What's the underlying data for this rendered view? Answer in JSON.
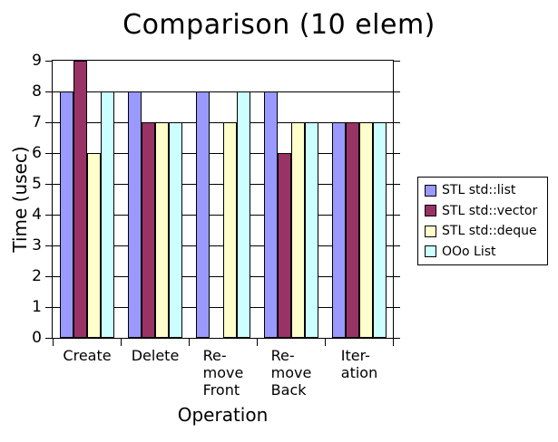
{
  "chart_data": {
    "type": "bar",
    "title": "Comparison (10 elem)",
    "xlabel": "Operation",
    "ylabel": "Time (usec)",
    "ylim": [
      0,
      9
    ],
    "y_tick_step": 1,
    "grid": true,
    "legend_position": "right",
    "categories": [
      "Create",
      "Delete",
      "Remove Front",
      "Remove Back",
      "Iteration"
    ],
    "category_label_lines": [
      [
        "Create"
      ],
      [
        "Delete"
      ],
      [
        "Re-",
        "move",
        "Front"
      ],
      [
        "Re-",
        "move",
        "Back"
      ],
      [
        "Iter-",
        "ation"
      ]
    ],
    "series": [
      {
        "name": "STL std::list",
        "color": "#9999FF",
        "values": [
          8,
          8,
          8,
          8,
          7
        ]
      },
      {
        "name": "STL std::vector",
        "color": "#993366",
        "values": [
          9,
          7,
          0,
          6,
          7
        ]
      },
      {
        "name": "STL std::deque",
        "color": "#FFFFCC",
        "values": [
          6,
          7,
          7,
          7,
          7
        ]
      },
      {
        "name": "OOo List",
        "color": "#CCFFFF",
        "values": [
          8,
          7,
          8,
          7,
          7
        ]
      }
    ]
  }
}
